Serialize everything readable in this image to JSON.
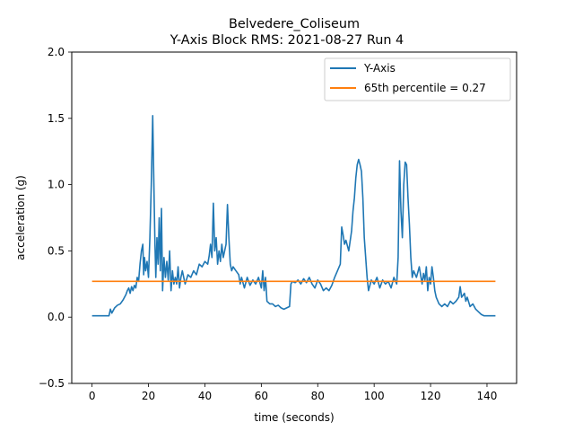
{
  "chart_data": {
    "type": "line",
    "title": "Belvedere_Coliseum",
    "subtitle": "Y-Axis Block RMS: 2021-08-27 Run 4",
    "xlabel": "time (seconds)",
    "ylabel": "acceleration (g)",
    "xlim": [
      -7.2,
      150.5
    ],
    "ylim": [
      -0.5,
      2.0
    ],
    "x_ticks": [
      0,
      20,
      40,
      60,
      80,
      100,
      120,
      140
    ],
    "y_ticks": [
      -0.5,
      0.0,
      0.5,
      1.0,
      1.5,
      2.0
    ],
    "x_tick_labels": [
      "0",
      "20",
      "40",
      "60",
      "80",
      "100",
      "120",
      "140"
    ],
    "y_tick_labels": [
      "−0.5",
      "0.0",
      "0.5",
      "1.0",
      "1.5",
      "2.0"
    ],
    "grid": false,
    "legend_position": "top-right",
    "series": [
      {
        "name": "Y-Axis",
        "color": "#1f77b4",
        "points": [
          [
            0,
            0.01
          ],
          [
            5,
            0.01
          ],
          [
            6,
            0.01
          ],
          [
            6.5,
            0.06
          ],
          [
            7,
            0.03
          ],
          [
            8,
            0.07
          ],
          [
            9,
            0.09
          ],
          [
            10,
            0.1
          ],
          [
            11,
            0.13
          ],
          [
            12,
            0.17
          ],
          [
            12.5,
            0.2
          ],
          [
            13,
            0.22
          ],
          [
            13.5,
            0.18
          ],
          [
            14,
            0.23
          ],
          [
            14.5,
            0.2
          ],
          [
            15,
            0.24
          ],
          [
            15.5,
            0.22
          ],
          [
            16,
            0.3
          ],
          [
            16.5,
            0.27
          ],
          [
            17,
            0.4
          ],
          [
            17.5,
            0.5
          ],
          [
            18,
            0.55
          ],
          [
            18.3,
            0.32
          ],
          [
            18.6,
            0.45
          ],
          [
            19,
            0.35
          ],
          [
            19.5,
            0.42
          ],
          [
            20,
            0.3
          ],
          [
            20.5,
            0.6
          ],
          [
            21,
            1.0
          ],
          [
            21.5,
            1.52
          ],
          [
            22,
            0.9
          ],
          [
            22.3,
            0.55
          ],
          [
            22.6,
            0.3
          ],
          [
            23,
            0.6
          ],
          [
            23.4,
            0.4
          ],
          [
            23.8,
            0.75
          ],
          [
            24.2,
            0.35
          ],
          [
            24.6,
            0.82
          ],
          [
            25,
            0.2
          ],
          [
            25.5,
            0.45
          ],
          [
            26,
            0.3
          ],
          [
            26.5,
            0.42
          ],
          [
            27,
            0.28
          ],
          [
            27.5,
            0.5
          ],
          [
            28,
            0.2
          ],
          [
            28.5,
            0.35
          ],
          [
            29,
            0.25
          ],
          [
            29.5,
            0.3
          ],
          [
            30,
            0.25
          ],
          [
            30.5,
            0.38
          ],
          [
            31,
            0.22
          ],
          [
            31.5,
            0.3
          ],
          [
            32,
            0.35
          ],
          [
            33,
            0.25
          ],
          [
            34,
            0.32
          ],
          [
            35,
            0.3
          ],
          [
            36,
            0.35
          ],
          [
            37,
            0.32
          ],
          [
            38,
            0.4
          ],
          [
            39,
            0.38
          ],
          [
            40,
            0.42
          ],
          [
            41,
            0.4
          ],
          [
            41.5,
            0.46
          ],
          [
            42,
            0.55
          ],
          [
            42.5,
            0.45
          ],
          [
            43,
            0.86
          ],
          [
            43.5,
            0.5
          ],
          [
            44,
            0.6
          ],
          [
            44.5,
            0.4
          ],
          [
            45,
            0.5
          ],
          [
            45.5,
            0.42
          ],
          [
            46,
            0.55
          ],
          [
            46.5,
            0.45
          ],
          [
            47,
            0.5
          ],
          [
            47.5,
            0.55
          ],
          [
            48,
            0.85
          ],
          [
            48.5,
            0.6
          ],
          [
            49,
            0.4
          ],
          [
            49.5,
            0.35
          ],
          [
            50,
            0.38
          ],
          [
            51,
            0.35
          ],
          [
            52,
            0.32
          ],
          [
            52.5,
            0.25
          ],
          [
            53,
            0.3
          ],
          [
            54,
            0.22
          ],
          [
            55,
            0.3
          ],
          [
            56,
            0.24
          ],
          [
            57,
            0.28
          ],
          [
            58,
            0.25
          ],
          [
            59,
            0.3
          ],
          [
            60,
            0.22
          ],
          [
            60.5,
            0.35
          ],
          [
            61,
            0.2
          ],
          [
            61.5,
            0.3
          ],
          [
            62,
            0.12
          ],
          [
            63,
            0.1
          ],
          [
            64,
            0.1
          ],
          [
            65,
            0.08
          ],
          [
            66,
            0.09
          ],
          [
            67,
            0.07
          ],
          [
            68,
            0.06
          ],
          [
            69,
            0.07
          ],
          [
            70,
            0.08
          ],
          [
            70.5,
            0.25
          ],
          [
            71,
            0.27
          ],
          [
            72,
            0.26
          ],
          [
            73,
            0.28
          ],
          [
            74,
            0.25
          ],
          [
            75,
            0.29
          ],
          [
            76,
            0.26
          ],
          [
            77,
            0.3
          ],
          [
            78,
            0.25
          ],
          [
            79,
            0.22
          ],
          [
            80,
            0.28
          ],
          [
            81,
            0.25
          ],
          [
            82,
            0.2
          ],
          [
            83,
            0.22
          ],
          [
            84,
            0.2
          ],
          [
            85,
            0.24
          ],
          [
            86,
            0.3
          ],
          [
            87,
            0.35
          ],
          [
            88,
            0.4
          ],
          [
            88.5,
            0.68
          ],
          [
            89,
            0.62
          ],
          [
            89.5,
            0.55
          ],
          [
            90,
            0.58
          ],
          [
            91,
            0.5
          ],
          [
            92,
            0.65
          ],
          [
            92.5,
            0.8
          ],
          [
            93,
            0.9
          ],
          [
            93.5,
            1.05
          ],
          [
            94,
            1.15
          ],
          [
            94.5,
            1.19
          ],
          [
            95,
            1.15
          ],
          [
            95.5,
            1.1
          ],
          [
            96,
            0.9
          ],
          [
            96.5,
            0.6
          ],
          [
            97,
            0.45
          ],
          [
            97.5,
            0.3
          ],
          [
            98,
            0.2
          ],
          [
            99,
            0.28
          ],
          [
            100,
            0.25
          ],
          [
            101,
            0.3
          ],
          [
            102,
            0.22
          ],
          [
            103,
            0.28
          ],
          [
            104,
            0.25
          ],
          [
            105,
            0.27
          ],
          [
            106,
            0.22
          ],
          [
            107,
            0.3
          ],
          [
            108,
            0.25
          ],
          [
            108.5,
            0.45
          ],
          [
            109,
            1.18
          ],
          [
            109.5,
            0.8
          ],
          [
            110,
            0.6
          ],
          [
            110.5,
            1.0
          ],
          [
            111,
            1.17
          ],
          [
            111.5,
            1.15
          ],
          [
            112,
            0.9
          ],
          [
            112.5,
            0.7
          ],
          [
            113,
            0.45
          ],
          [
            113.5,
            0.3
          ],
          [
            114,
            0.35
          ],
          [
            115,
            0.3
          ],
          [
            116,
            0.38
          ],
          [
            117,
            0.25
          ],
          [
            117.5,
            0.33
          ],
          [
            118,
            0.28
          ],
          [
            118.5,
            0.38
          ],
          [
            119,
            0.2
          ],
          [
            119.5,
            0.3
          ],
          [
            120,
            0.25
          ],
          [
            120.5,
            0.38
          ],
          [
            121,
            0.3
          ],
          [
            121.5,
            0.2
          ],
          [
            122,
            0.15
          ],
          [
            123,
            0.1
          ],
          [
            124,
            0.08
          ],
          [
            125,
            0.1
          ],
          [
            126,
            0.08
          ],
          [
            127,
            0.12
          ],
          [
            128,
            0.1
          ],
          [
            129,
            0.12
          ],
          [
            130,
            0.15
          ],
          [
            130.5,
            0.23
          ],
          [
            131,
            0.15
          ],
          [
            132,
            0.18
          ],
          [
            132.5,
            0.12
          ],
          [
            133,
            0.15
          ],
          [
            134,
            0.08
          ],
          [
            135,
            0.1
          ],
          [
            136,
            0.06
          ],
          [
            137,
            0.04
          ],
          [
            138,
            0.02
          ],
          [
            139,
            0.01
          ],
          [
            140,
            0.01
          ],
          [
            143,
            0.01
          ]
        ]
      },
      {
        "name": "65th percentile = 0.27",
        "color": "#ff7f0e",
        "points": [
          [
            0,
            0.27
          ],
          [
            143,
            0.27
          ]
        ]
      }
    ]
  }
}
